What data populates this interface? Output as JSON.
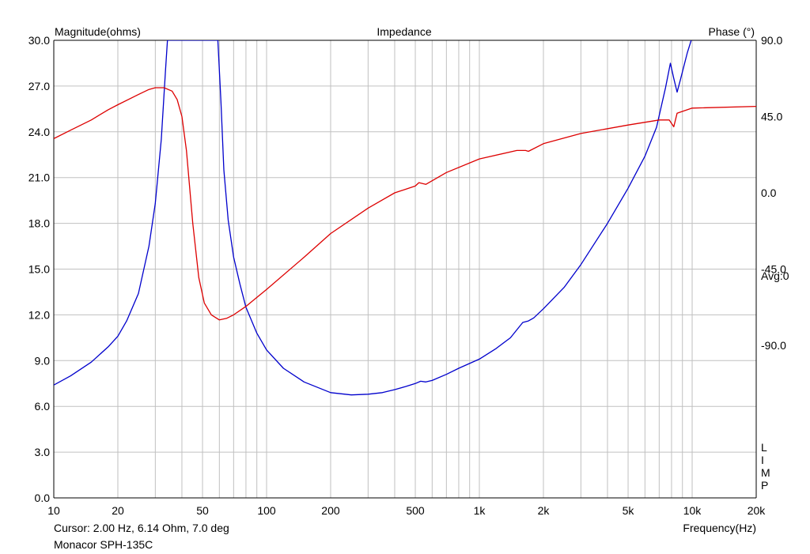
{
  "header": {
    "left_title": "Magnitude(ohms)",
    "center_title": "Impedance",
    "right_title": "Phase (°)"
  },
  "footer": {
    "cursor": "Cursor: 2.00 Hz, 6.14 Ohm, 7.0 deg",
    "product": "Monacor SPH-135C",
    "xlabel": "Frequency(Hz)"
  },
  "side_labels": {
    "avg": "Avg:0",
    "limp": [
      "L",
      "I",
      "M",
      "P"
    ]
  },
  "colors": {
    "magnitude": "#0000cc",
    "phase": "#dd0000",
    "grid": "#c0c0c0",
    "axis": "#000000"
  },
  "chart_data": {
    "type": "line",
    "title": "Impedance",
    "xlabel": "Frequency(Hz)",
    "ylabel": "Magnitude(ohms)",
    "y2label": "Phase (°)",
    "xscale": "log",
    "xlim": [
      10,
      20000
    ],
    "ylim": [
      0,
      30
    ],
    "y2lim": [
      -180,
      90
    ],
    "grid": true,
    "x_ticks": [
      {
        "value": 10,
        "label": "10"
      },
      {
        "value": 20,
        "label": "20"
      },
      {
        "value": 50,
        "label": "50"
      },
      {
        "value": 100,
        "label": "100"
      },
      {
        "value": 200,
        "label": "200"
      },
      {
        "value": 500,
        "label": "500"
      },
      {
        "value": 1000,
        "label": "1k"
      },
      {
        "value": 2000,
        "label": "2k"
      },
      {
        "value": 5000,
        "label": "5k"
      },
      {
        "value": 10000,
        "label": "10k"
      },
      {
        "value": 20000,
        "label": "20k"
      }
    ],
    "y_ticks": [
      0,
      3,
      6,
      9,
      12,
      15,
      18,
      21,
      24,
      27,
      30
    ],
    "y_tick_labels": [
      "0.0",
      "3.0",
      "6.0",
      "9.0",
      "12.0",
      "15.0",
      "18.0",
      "21.0",
      "24.0",
      "27.0",
      "30.0"
    ],
    "y2_ticks": [
      {
        "value": 90,
        "label": "90.0"
      },
      {
        "value": 45,
        "label": "45.0"
      },
      {
        "value": 0,
        "label": "0.0"
      },
      {
        "value": -45,
        "label": "-45.0"
      },
      {
        "value": -90,
        "label": "-90.0"
      }
    ],
    "series": [
      {
        "axis": "left",
        "color": "#0000cc",
        "points": [
          [
            10,
            7.4
          ],
          [
            12,
            8.0
          ],
          [
            15,
            8.9
          ],
          [
            18,
            9.9
          ],
          [
            20,
            10.6
          ],
          [
            22,
            11.6
          ],
          [
            25,
            13.4
          ],
          [
            28,
            16.5
          ],
          [
            30,
            19.3
          ],
          [
            32,
            23.5
          ],
          [
            33.5,
            28.0
          ],
          [
            34.2,
            30.0
          ],
          [
            59,
            30.0
          ],
          [
            61,
            26.0
          ],
          [
            63,
            21.5
          ],
          [
            66,
            18.2
          ],
          [
            70,
            15.8
          ],
          [
            75,
            14.0
          ],
          [
            80,
            12.5
          ],
          [
            90,
            10.8
          ],
          [
            100,
            9.7
          ],
          [
            120,
            8.5
          ],
          [
            150,
            7.6
          ],
          [
            200,
            6.9
          ],
          [
            250,
            6.75
          ],
          [
            300,
            6.8
          ],
          [
            350,
            6.9
          ],
          [
            400,
            7.1
          ],
          [
            450,
            7.3
          ],
          [
            500,
            7.5
          ],
          [
            530,
            7.65
          ],
          [
            560,
            7.6
          ],
          [
            600,
            7.7
          ],
          [
            700,
            8.1
          ],
          [
            800,
            8.5
          ],
          [
            1000,
            9.1
          ],
          [
            1200,
            9.8
          ],
          [
            1400,
            10.5
          ],
          [
            1600,
            11.5
          ],
          [
            1700,
            11.6
          ],
          [
            1800,
            11.8
          ],
          [
            2000,
            12.4
          ],
          [
            2500,
            13.8
          ],
          [
            3000,
            15.3
          ],
          [
            4000,
            18.0
          ],
          [
            5000,
            20.3
          ],
          [
            6000,
            22.4
          ],
          [
            6800,
            24.3
          ],
          [
            7500,
            26.9
          ],
          [
            7900,
            28.5
          ],
          [
            8200,
            27.5
          ],
          [
            8500,
            26.6
          ],
          [
            8800,
            27.4
          ],
          [
            9500,
            29.2
          ],
          [
            9900,
            30.0
          ]
        ]
      },
      {
        "axis": "right",
        "color": "#dd0000",
        "points": [
          [
            10,
            32
          ],
          [
            12,
            37
          ],
          [
            15,
            43
          ],
          [
            18,
            49
          ],
          [
            20,
            52
          ],
          [
            25,
            58
          ],
          [
            28,
            61
          ],
          [
            30,
            62
          ],
          [
            33,
            62
          ],
          [
            36,
            60
          ],
          [
            38,
            55
          ],
          [
            40,
            45
          ],
          [
            42,
            25
          ],
          [
            45,
            -18
          ],
          [
            48,
            -50
          ],
          [
            51,
            -65
          ],
          [
            55,
            -72
          ],
          [
            60,
            -75
          ],
          [
            65,
            -74
          ],
          [
            70,
            -72
          ],
          [
            80,
            -67
          ],
          [
            100,
            -57
          ],
          [
            150,
            -38
          ],
          [
            200,
            -24
          ],
          [
            300,
            -9
          ],
          [
            400,
            0
          ],
          [
            500,
            4
          ],
          [
            520,
            6
          ],
          [
            560,
            5
          ],
          [
            700,
            12
          ],
          [
            1000,
            20
          ],
          [
            1500,
            25
          ],
          [
            1650,
            25
          ],
          [
            1700,
            24.5
          ],
          [
            2000,
            29
          ],
          [
            3000,
            35
          ],
          [
            5000,
            40
          ],
          [
            7000,
            43
          ],
          [
            7800,
            43
          ],
          [
            8200,
            39
          ],
          [
            8500,
            47
          ],
          [
            10000,
            50
          ],
          [
            20000,
            51
          ]
        ]
      }
    ]
  }
}
